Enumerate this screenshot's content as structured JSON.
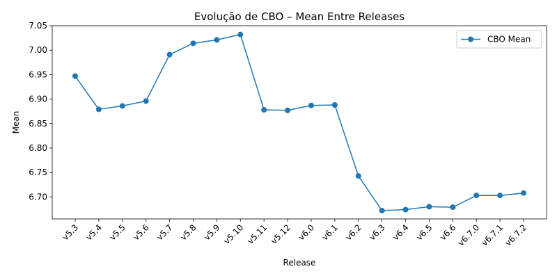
{
  "chart_data": {
    "type": "line",
    "title": "Evolução de CBO – Mean Entre Releases",
    "xlabel": "Release",
    "ylabel": "Mean",
    "categories": [
      "v5.3",
      "v5.4",
      "v5.5",
      "v5.6",
      "v5.7",
      "v5.8",
      "v5.9",
      "v5.10",
      "v5.11",
      "v5.12",
      "v6.0",
      "v6.1",
      "v6.2",
      "v6.3",
      "v6.4",
      "v6.5",
      "v6.6",
      "v6.7.0",
      "v6.7.1",
      "v6.7.2"
    ],
    "series": [
      {
        "name": "CBO Mean",
        "color": "#1f77b4",
        "values": [
          6.947,
          6.879,
          6.886,
          6.896,
          6.991,
          7.014,
          7.021,
          7.032,
          6.878,
          6.877,
          6.887,
          6.888,
          6.743,
          6.672,
          6.674,
          6.68,
          6.679,
          6.703,
          6.703,
          6.708
        ]
      }
    ],
    "ylim": [
      6.655,
      7.05
    ],
    "yticks": [
      "6.70",
      "6.75",
      "6.80",
      "6.85",
      "6.90",
      "6.95",
      "7.00",
      "7.05"
    ],
    "grid": false,
    "legend": "top-right"
  }
}
